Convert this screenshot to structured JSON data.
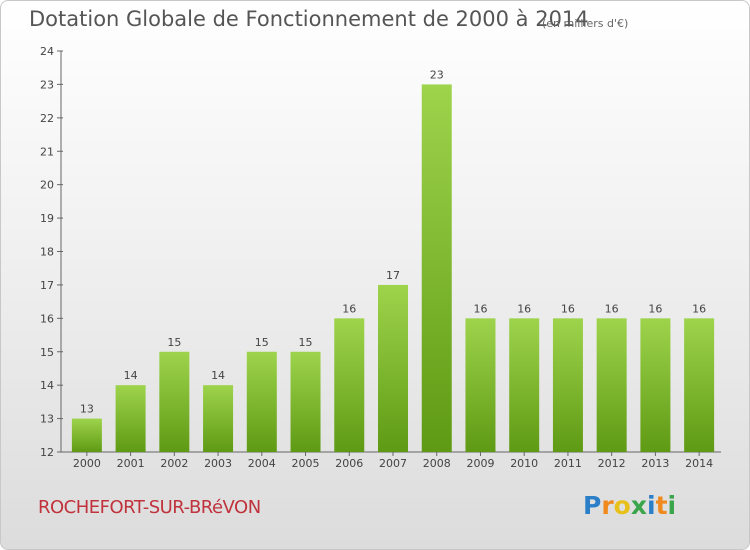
{
  "chart_data": {
    "type": "bar",
    "title": "Dotation Globale de Fonctionnement de 2000 à 2014",
    "unit_note": "(en milliers d'€)",
    "categories": [
      "2000",
      "2001",
      "2002",
      "2003",
      "2004",
      "2005",
      "2006",
      "2007",
      "2008",
      "2009",
      "2010",
      "2011",
      "2012",
      "2013",
      "2014"
    ],
    "values": [
      13,
      14,
      15,
      14,
      15,
      15,
      16,
      17,
      23,
      16,
      16,
      16,
      16,
      16,
      16
    ],
    "ylim": [
      12,
      24
    ],
    "yticks": [
      12,
      13,
      14,
      15,
      16,
      17,
      18,
      19,
      20,
      21,
      22,
      23,
      24
    ],
    "xlabel": "",
    "ylabel": "",
    "grid": false,
    "bar_color_top": "#9ed44c",
    "bar_color_bottom": "#5f9a14"
  },
  "footer": {
    "city": "ROCHEFORT-SUR-BRéVON",
    "logo_letters": [
      "P",
      "r",
      "o",
      "x",
      "i",
      "t",
      "i"
    ]
  },
  "colors": {
    "title": "#555555",
    "city": "#c0323c"
  }
}
